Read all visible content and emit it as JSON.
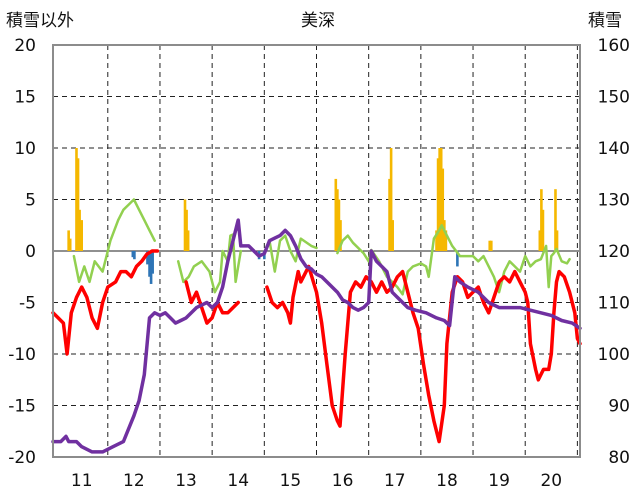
{
  "chart_data": {
    "type": "line",
    "title": "美深",
    "ylabel_left": "積雪以外",
    "ylabel_right": "積雪",
    "x_categories": [
      "11",
      "12",
      "13",
      "14",
      "15",
      "16",
      "17",
      "18",
      "19",
      "20"
    ],
    "x_range": [
      10.45,
      20.55
    ],
    "ylim_left": [
      -20,
      20
    ],
    "ylim_right": [
      80,
      160
    ],
    "yticks_left": [
      "20",
      "15",
      "10",
      "5",
      "0",
      "-5",
      "-10",
      "-15",
      "-20"
    ],
    "yticks_right": [
      "160",
      "150",
      "140",
      "130",
      "120",
      "110",
      "100",
      "90",
      "80"
    ],
    "grid": "dashed horizontal and vertical",
    "legend": "none",
    "series": [
      {
        "axis": "left",
        "kind": "bar",
        "color": "#F5B800",
        "points": [
          [
            10.75,
            2
          ],
          [
            10.78,
            1.2
          ],
          [
            10.9,
            10
          ],
          [
            10.93,
            9
          ],
          [
            10.96,
            4
          ],
          [
            11.0,
            3
          ],
          [
            12.98,
            5
          ],
          [
            13.01,
            4
          ],
          [
            13.04,
            2
          ],
          [
            15.87,
            7
          ],
          [
            15.9,
            6
          ],
          [
            15.93,
            5
          ],
          [
            15.96,
            3
          ],
          [
            16.9,
            7
          ],
          [
            16.93,
            10
          ],
          [
            16.96,
            3
          ],
          [
            17.8,
            2
          ],
          [
            17.83,
            9
          ],
          [
            17.86,
            10
          ],
          [
            17.89,
            10
          ],
          [
            17.92,
            8
          ],
          [
            17.95,
            3
          ],
          [
            17.98,
            2
          ],
          [
            18.82,
            1
          ],
          [
            18.85,
            1
          ],
          [
            19.78,
            2
          ],
          [
            19.81,
            6
          ],
          [
            19.84,
            4
          ],
          [
            20.08,
            6
          ],
          [
            20.11,
            2
          ]
        ]
      },
      {
        "axis": "left",
        "kind": "bar",
        "color": "#2E75B6",
        "points": [
          [
            11.98,
            -0.6
          ],
          [
            12.01,
            -0.8
          ],
          [
            12.26,
            -1.3
          ],
          [
            12.3,
            -2.5
          ],
          [
            12.33,
            -3.2
          ],
          [
            12.36,
            -2.2
          ],
          [
            14.4,
            -0.8
          ],
          [
            14.5,
            -0.8
          ],
          [
            18.2,
            -1.5
          ]
        ]
      },
      {
        "axis": "left",
        "kind": "line",
        "color": "#92D050",
        "points": [
          [
            10.85,
            -0.5
          ],
          [
            10.95,
            -3
          ],
          [
            11.05,
            -1.5
          ],
          [
            11.15,
            -3
          ],
          [
            11.25,
            -1
          ],
          [
            11.4,
            -2
          ],
          [
            11.55,
            1
          ],
          [
            11.7,
            3
          ],
          [
            11.8,
            4
          ],
          [
            11.9,
            4.5
          ],
          [
            12.0,
            5
          ],
          [
            12.1,
            4
          ],
          [
            12.2,
            3
          ],
          [
            12.3,
            2
          ],
          [
            12.4,
            1
          ],
          [
            12.85,
            -1
          ],
          [
            12.95,
            -3
          ],
          [
            13.05,
            -2.5
          ],
          [
            13.15,
            -1.5
          ],
          [
            13.3,
            -1
          ],
          [
            13.45,
            -2
          ],
          [
            13.55,
            -4
          ],
          [
            13.65,
            -3
          ],
          [
            13.7,
            0
          ],
          [
            13.8,
            -1
          ],
          [
            13.85,
            1.5
          ],
          [
            13.9,
            1.6
          ],
          [
            13.95,
            -3
          ],
          [
            14.05,
            0
          ],
          [
            14.6,
            1
          ],
          [
            14.7,
            -2
          ],
          [
            14.8,
            1
          ],
          [
            14.9,
            1.5
          ],
          [
            15.0,
            0
          ],
          [
            15.1,
            -1
          ],
          [
            15.2,
            1.2
          ],
          [
            15.4,
            0.5
          ],
          [
            15.5,
            0.3
          ],
          [
            15.9,
            -0.2
          ],
          [
            16.0,
            1
          ],
          [
            16.1,
            1.5
          ],
          [
            16.2,
            0.8
          ],
          [
            16.4,
            -0.2
          ],
          [
            16.5,
            -1
          ],
          [
            16.55,
            0.1
          ],
          [
            16.7,
            -1
          ],
          [
            16.85,
            -2.5
          ],
          [
            16.95,
            -3
          ],
          [
            17.05,
            -3.5
          ],
          [
            17.15,
            -4.2
          ],
          [
            17.25,
            -2
          ],
          [
            17.35,
            -1.5
          ],
          [
            17.5,
            -1.2
          ],
          [
            17.6,
            -1.5
          ],
          [
            17.65,
            -2.5
          ],
          [
            17.75,
            1.2
          ],
          [
            17.85,
            2
          ],
          [
            17.9,
            2.5
          ],
          [
            18.0,
            1.5
          ],
          [
            18.1,
            0.5
          ],
          [
            18.25,
            -0.5
          ],
          [
            18.5,
            -0.5
          ],
          [
            18.6,
            -1
          ],
          [
            18.7,
            -0.5
          ],
          [
            18.8,
            -1.5
          ],
          [
            18.9,
            -2.5
          ],
          [
            19.0,
            -4
          ],
          [
            19.1,
            -2
          ],
          [
            19.2,
            -1
          ],
          [
            19.3,
            -1.5
          ],
          [
            19.4,
            -2
          ],
          [
            19.5,
            -0.5
          ],
          [
            19.6,
            -1.5
          ],
          [
            19.7,
            -1
          ],
          [
            19.8,
            -0.8
          ],
          [
            19.9,
            0.5
          ],
          [
            19.95,
            -3.5
          ],
          [
            20.0,
            -0.5
          ],
          [
            20.05,
            -0.2
          ],
          [
            20.1,
            0.2
          ],
          [
            20.2,
            -1
          ],
          [
            20.3,
            -1.2
          ],
          [
            20.35,
            -0.8
          ]
        ]
      },
      {
        "axis": "left",
        "kind": "line",
        "color": "#FF0000",
        "points": [
          [
            10.45,
            -6
          ],
          [
            10.55,
            -6.5
          ],
          [
            10.65,
            -7
          ],
          [
            10.72,
            -10
          ],
          [
            10.8,
            -6
          ],
          [
            10.9,
            -4.5
          ],
          [
            11.0,
            -3.5
          ],
          [
            11.1,
            -4.5
          ],
          [
            11.2,
            -6.5
          ],
          [
            11.3,
            -7.5
          ],
          [
            11.4,
            -5
          ],
          [
            11.5,
            -3.5
          ],
          [
            11.65,
            -3
          ],
          [
            11.75,
            -2
          ],
          [
            11.85,
            -2
          ],
          [
            11.95,
            -2.5
          ],
          [
            12.05,
            -1.5
          ],
          [
            12.15,
            -1
          ],
          [
            12.25,
            -0.3
          ],
          [
            12.35,
            0
          ],
          [
            12.45,
            0
          ],
          [
            13.0,
            -3
          ],
          [
            13.1,
            -5
          ],
          [
            13.2,
            -4
          ],
          [
            13.3,
            -5.5
          ],
          [
            13.4,
            -7
          ],
          [
            13.5,
            -6.5
          ],
          [
            13.6,
            -5
          ],
          [
            13.7,
            -6
          ],
          [
            13.8,
            -6
          ],
          [
            13.9,
            -5.5
          ],
          [
            14.0,
            -5
          ],
          [
            14.55,
            -3.5
          ],
          [
            14.65,
            -5
          ],
          [
            14.75,
            -5.5
          ],
          [
            14.85,
            -5
          ],
          [
            14.95,
            -6
          ],
          [
            15.0,
            -7
          ],
          [
            15.05,
            -4.5
          ],
          [
            15.15,
            -2
          ],
          [
            15.2,
            -3
          ],
          [
            15.3,
            -2
          ],
          [
            15.35,
            -1.5
          ],
          [
            15.5,
            -4
          ],
          [
            15.6,
            -7
          ],
          [
            15.7,
            -11
          ],
          [
            15.8,
            -15
          ],
          [
            15.9,
            -16.5
          ],
          [
            15.95,
            -17
          ],
          [
            16.05,
            -10
          ],
          [
            16.15,
            -4
          ],
          [
            16.25,
            -3
          ],
          [
            16.35,
            -3.5
          ],
          [
            16.45,
            -2.5
          ],
          [
            16.55,
            -3
          ],
          [
            16.65,
            -4
          ],
          [
            16.75,
            -3
          ],
          [
            16.85,
            -4
          ],
          [
            16.95,
            -3.5
          ],
          [
            17.05,
            -2.5
          ],
          [
            17.15,
            -2
          ],
          [
            17.25,
            -4
          ],
          [
            17.35,
            -6
          ],
          [
            17.45,
            -7.5
          ],
          [
            17.55,
            -11
          ],
          [
            17.65,
            -14
          ],
          [
            17.75,
            -16.5
          ],
          [
            17.85,
            -18.5
          ],
          [
            17.95,
            -15
          ],
          [
            18.0,
            -9
          ],
          [
            18.1,
            -4
          ],
          [
            18.2,
            -2.5
          ],
          [
            18.3,
            -3
          ],
          [
            18.4,
            -4.5
          ],
          [
            18.5,
            -4
          ],
          [
            18.6,
            -3.5
          ],
          [
            18.7,
            -5
          ],
          [
            18.8,
            -6
          ],
          [
            18.9,
            -4.5
          ],
          [
            19.0,
            -3
          ],
          [
            19.1,
            -2.5
          ],
          [
            19.2,
            -3
          ],
          [
            19.3,
            -2
          ],
          [
            19.4,
            -3
          ],
          [
            19.5,
            -4
          ],
          [
            19.55,
            -5
          ],
          [
            19.6,
            -9
          ],
          [
            19.7,
            -11.5
          ],
          [
            19.75,
            -12.5
          ],
          [
            19.85,
            -11.5
          ],
          [
            19.95,
            -11.5
          ],
          [
            20.0,
            -10
          ],
          [
            20.05,
            -6
          ],
          [
            20.1,
            -3
          ],
          [
            20.15,
            -2
          ],
          [
            20.25,
            -2.5
          ],
          [
            20.35,
            -4
          ],
          [
            20.45,
            -6
          ],
          [
            20.5,
            -8.5
          ],
          [
            20.55,
            -9
          ]
        ]
      },
      {
        "axis": "right",
        "kind": "line",
        "color": "#7030A0",
        "points": [
          [
            10.45,
            83
          ],
          [
            10.6,
            83
          ],
          [
            10.7,
            84
          ],
          [
            10.75,
            83
          ],
          [
            10.9,
            83
          ],
          [
            11.0,
            82
          ],
          [
            11.2,
            81
          ],
          [
            11.4,
            81
          ],
          [
            11.6,
            82
          ],
          [
            11.8,
            83
          ],
          [
            12.0,
            88
          ],
          [
            12.1,
            91
          ],
          [
            12.2,
            96
          ],
          [
            12.3,
            107
          ],
          [
            12.4,
            108
          ],
          [
            12.5,
            107.5
          ],
          [
            12.6,
            108
          ],
          [
            12.7,
            107
          ],
          [
            12.8,
            106
          ],
          [
            12.9,
            106.5
          ],
          [
            13.0,
            107
          ],
          [
            13.1,
            108
          ],
          [
            13.2,
            109
          ],
          [
            13.3,
            109.5
          ],
          [
            13.4,
            110
          ],
          [
            13.5,
            109
          ],
          [
            13.6,
            110
          ],
          [
            13.7,
            113
          ],
          [
            13.8,
            118
          ],
          [
            13.9,
            122
          ],
          [
            14.0,
            126
          ],
          [
            14.05,
            121
          ],
          [
            14.2,
            121
          ],
          [
            14.3,
            120
          ],
          [
            14.4,
            119
          ],
          [
            14.5,
            119.5
          ],
          [
            14.6,
            122
          ],
          [
            14.7,
            122.5
          ],
          [
            14.8,
            123
          ],
          [
            14.9,
            124
          ],
          [
            15.0,
            123
          ],
          [
            15.1,
            121
          ],
          [
            15.2,
            118.5
          ],
          [
            15.3,
            117
          ],
          [
            15.4,
            116.5
          ],
          [
            15.5,
            115.5
          ],
          [
            15.6,
            115
          ],
          [
            15.7,
            114
          ],
          [
            15.8,
            113
          ],
          [
            15.9,
            112
          ],
          [
            16.0,
            110.5
          ],
          [
            16.1,
            110
          ],
          [
            16.2,
            109
          ],
          [
            16.3,
            108.5
          ],
          [
            16.4,
            109
          ],
          [
            16.5,
            110
          ],
          [
            16.55,
            120
          ],
          [
            16.65,
            118
          ],
          [
            16.75,
            117
          ],
          [
            16.85,
            116
          ],
          [
            16.95,
            112
          ],
          [
            17.05,
            111
          ],
          [
            17.15,
            110
          ],
          [
            17.25,
            109
          ],
          [
            17.4,
            108.5
          ],
          [
            17.6,
            108
          ],
          [
            17.8,
            107
          ],
          [
            17.95,
            106.5
          ],
          [
            18.05,
            105.5
          ],
          [
            18.15,
            115
          ],
          [
            18.25,
            114
          ],
          [
            18.4,
            113
          ],
          [
            18.6,
            112
          ],
          [
            18.8,
            110
          ],
          [
            19.0,
            109
          ],
          [
            19.2,
            109
          ],
          [
            19.4,
            109
          ],
          [
            19.6,
            108.5
          ],
          [
            19.8,
            108
          ],
          [
            20.0,
            107.5
          ],
          [
            20.2,
            106.5
          ],
          [
            20.4,
            106
          ],
          [
            20.55,
            105
          ]
        ]
      }
    ]
  }
}
